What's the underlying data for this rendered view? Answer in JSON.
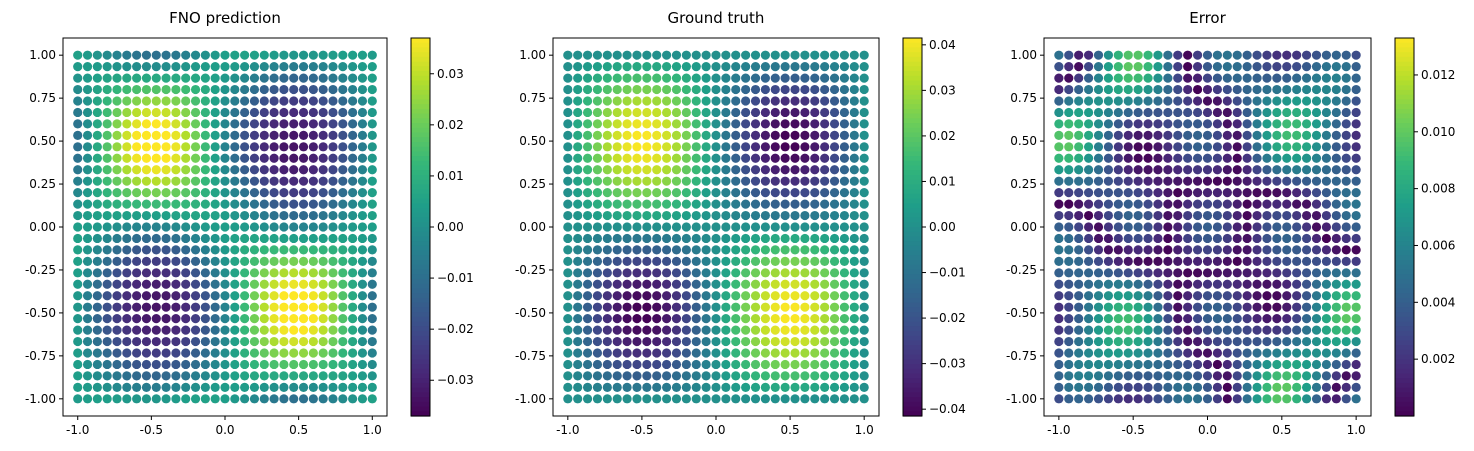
{
  "chart_data": [
    {
      "type": "scatter",
      "title": "FNO prediction",
      "xlabel": "",
      "ylabel": "",
      "xlim": [
        -1.1,
        1.1
      ],
      "ylim": [
        -1.1,
        1.1
      ],
      "grid_n": 31,
      "field": "prediction",
      "x_ticks": [
        "-1.0",
        "-0.5",
        "0.0",
        "0.5",
        "1.0"
      ],
      "y_ticks": [
        "-1.00",
        "-0.75",
        "-0.50",
        "-0.25",
        "0.00",
        "0.25",
        "0.50",
        "0.75",
        "1.00"
      ],
      "colorbar": {
        "min": -0.037,
        "max": 0.037,
        "ticks": [
          "0.03",
          "0.02",
          "0.01",
          "0.00",
          "−0.01",
          "−0.02",
          "−0.03"
        ],
        "tick_values": [
          0.03,
          0.02,
          0.01,
          0.0,
          -0.01,
          -0.02,
          -0.03
        ]
      },
      "colormap": "viridis",
      "grid": false
    },
    {
      "type": "scatter",
      "title": "Ground truth",
      "xlabel": "",
      "ylabel": "",
      "xlim": [
        -1.1,
        1.1
      ],
      "ylim": [
        -1.1,
        1.1
      ],
      "grid_n": 31,
      "field": "truth",
      "x_ticks": [
        "-1.0",
        "-0.5",
        "0.0",
        "0.5",
        "1.0"
      ],
      "y_ticks": [
        "-1.00",
        "-0.75",
        "-0.50",
        "-0.25",
        "0.00",
        "0.25",
        "0.50",
        "0.75",
        "1.00"
      ],
      "colorbar": {
        "min": -0.0415,
        "max": 0.0415,
        "ticks": [
          "0.04",
          "0.03",
          "0.02",
          "0.01",
          "0.00",
          "−0.01",
          "−0.02",
          "−0.03",
          "−0.04"
        ],
        "tick_values": [
          0.04,
          0.03,
          0.02,
          0.01,
          0.0,
          -0.01,
          -0.02,
          -0.03,
          -0.04
        ]
      },
      "colormap": "viridis",
      "grid": false
    },
    {
      "type": "scatter",
      "title": "Error",
      "xlabel": "",
      "ylabel": "",
      "xlim": [
        -1.1,
        1.1
      ],
      "ylim": [
        -1.1,
        1.1
      ],
      "grid_n": 31,
      "field": "error",
      "x_ticks": [
        "-1.0",
        "-0.5",
        "0.0",
        "0.5",
        "1.0"
      ],
      "y_ticks": [
        "-1.00",
        "-0.75",
        "-0.50",
        "-0.25",
        "0.00",
        "0.25",
        "0.50",
        "0.75",
        "1.00"
      ],
      "colorbar": {
        "min": 0.0,
        "max": 0.0133,
        "ticks": [
          "0.012",
          "0.010",
          "0.008",
          "0.006",
          "0.004",
          "0.002"
        ],
        "tick_values": [
          0.012,
          0.01,
          0.008,
          0.006,
          0.004,
          0.002
        ]
      },
      "colormap": "viridis",
      "grid": false
    }
  ]
}
